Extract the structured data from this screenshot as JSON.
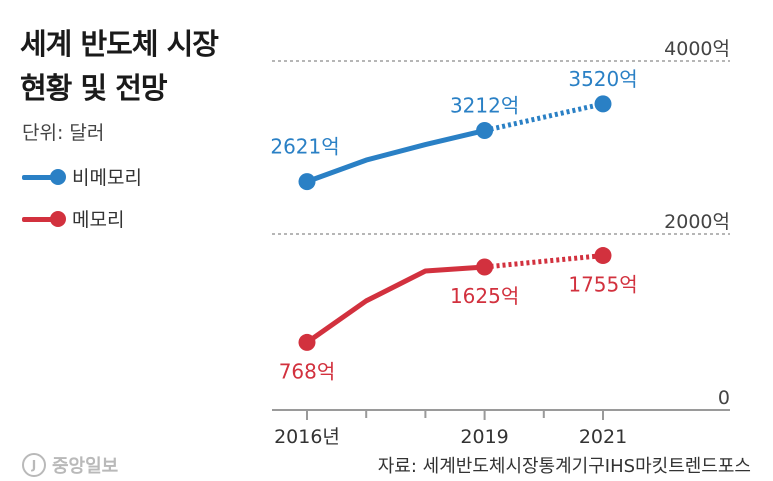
{
  "title_lines": [
    "세계 반도체 시장",
    "현황 및 전망"
  ],
  "unit_label": "단위: 달러",
  "footer": {
    "logo_text": "중앙일보",
    "source": "자료: 세계반도체시장통계기구IHS마킷트렌드포스"
  },
  "chart_data": {
    "type": "line",
    "title": "세계 반도체 시장 현황 및 전망",
    "unit": "단위: 달러",
    "x": [
      2016,
      2017,
      2018,
      2019,
      2020,
      2021
    ],
    "x_tick_labels": [
      "2016년",
      "",
      "",
      "2019",
      "",
      "2021"
    ],
    "y_tick_labels": [
      "0",
      "2000억",
      "4000억"
    ],
    "y_ticks": [
      0,
      2000,
      4000
    ],
    "axis_break_between": [
      2000,
      4000
    ],
    "series": [
      {
        "name": "비메모리",
        "color": "#2a80c5",
        "values": [
          2621,
          2870,
          3050,
          3212,
          3366,
          3520
        ],
        "forecast_from": 2019,
        "labels": [
          {
            "x": 2016,
            "text": "2621억"
          },
          {
            "x": 2019,
            "text": "3212억"
          },
          {
            "x": 2021,
            "text": "3520억"
          }
        ]
      },
      {
        "name": "메모리",
        "color": "#d2313e",
        "values": [
          768,
          1240,
          1580,
          1625,
          1690,
          1755
        ],
        "forecast_from": 2019,
        "labels": [
          {
            "x": 2016,
            "text": "768억"
          },
          {
            "x": 2019,
            "text": "1625억"
          },
          {
            "x": 2021,
            "text": "1755억"
          }
        ]
      }
    ]
  }
}
